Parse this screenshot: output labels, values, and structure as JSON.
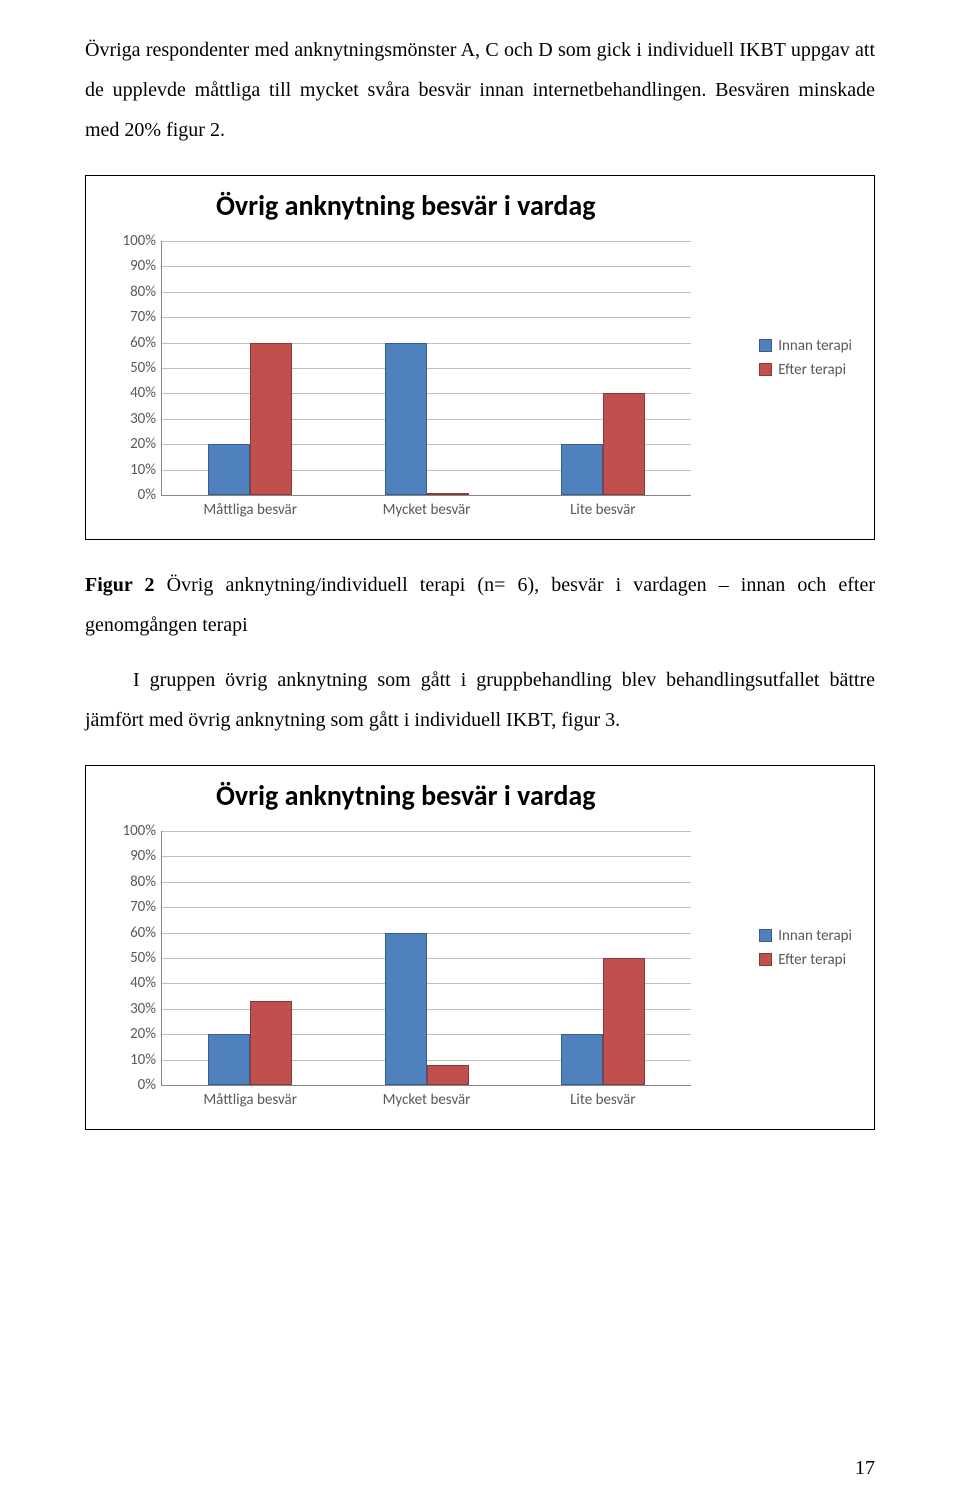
{
  "para1": "Övriga respondenter med anknytningsmönster A, C och D som gick i individuell IKBT uppgav att de upplevde måttliga till mycket svåra besvär innan internetbehandlingen. Besvären minskade med 20% figur 2.",
  "caption1_prefix": "Figur 2",
  "caption1_rest": " Övrig anknytning/individuell terapi (n= 6), besvär i vardagen – innan och efter genomgången terapi",
  "para2": "I gruppen övrig anknytning som gått i gruppbehandling blev behandlingsutfallet bättre jämfört med övrig anknytning som gått i individuell IKBT, figur 3.",
  "page_number": "17",
  "chart_common": {
    "title": "Övrig anknytning besvär i vardag",
    "ytick_labels": [
      "0%",
      "10%",
      "20%",
      "30%",
      "40%",
      "50%",
      "60%",
      "70%",
      "80%",
      "90%",
      "100%"
    ],
    "categories": [
      "Måttliga besvär",
      "Mycket besvär",
      "Lite besvär"
    ],
    "legend": [
      "Innan terapi",
      "Efter terapi"
    ],
    "colors": {
      "innan": "#4f81bd",
      "efter": "#c0504d",
      "grid": "#bfbfbf",
      "axis_text": "#595959"
    }
  },
  "chart1": {
    "innan": [
      20,
      60,
      20
    ],
    "efter": [
      60,
      0,
      40
    ]
  },
  "chart2": {
    "innan": [
      20,
      60,
      20
    ],
    "efter": [
      33,
      8,
      50
    ]
  }
}
